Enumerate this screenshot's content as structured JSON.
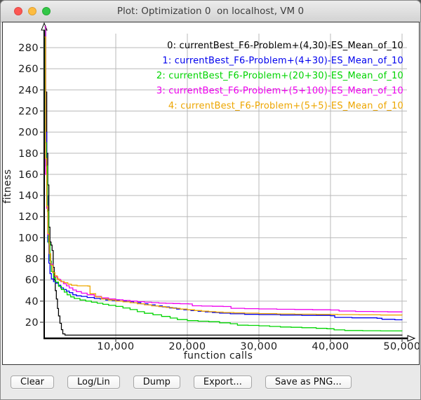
{
  "window": {
    "title": "Plot: Optimization 0  on localhost, VM 0"
  },
  "toolbar": {
    "buttons": [
      "Clear",
      "Log/Lin",
      "Dump",
      "Export...",
      "Save as PNG..."
    ]
  },
  "chart_data": {
    "type": "line",
    "title": "",
    "xlabel": "function calls",
    "ylabel": "fitness",
    "xlim": [
      0,
      50000
    ],
    "ylim": [
      4,
      306
    ],
    "grid": true,
    "legend_position": "top-right",
    "x_ticks": [
      10000,
      20000,
      30000,
      40000,
      50000
    ],
    "x_tick_labels": [
      "10,000",
      "20,000",
      "30,000",
      "40,000",
      "50,000"
    ],
    "y_ticks": [
      20,
      40,
      60,
      80,
      100,
      120,
      140,
      160,
      180,
      200,
      220,
      240,
      260,
      280
    ],
    "colors": {
      "grid": "#b9b9b9",
      "axis": "#000000",
      "tick": "#444444",
      "label": "#1c1c1c"
    },
    "series": [
      {
        "label": "0: currentBest_F6-Problem+(4,30)-ES_Mean_of_10",
        "color": "#000000",
        "points": [
          [
            60,
            300
          ],
          [
            200,
            238
          ],
          [
            350,
            180
          ],
          [
            500,
            150
          ],
          [
            650,
            110
          ],
          [
            800,
            96
          ],
          [
            950,
            93
          ],
          [
            1100,
            88
          ],
          [
            1250,
            72
          ],
          [
            1400,
            60
          ],
          [
            1550,
            50
          ],
          [
            1700,
            42
          ],
          [
            1850,
            33
          ],
          [
            2000,
            26
          ],
          [
            2200,
            19
          ],
          [
            2400,
            13
          ],
          [
            2600,
            9
          ],
          [
            2900,
            7.8
          ],
          [
            50000,
            7.5
          ]
        ]
      },
      {
        "label": "1: currentBest_F6-Problem+(4+30)-ES_Mean_of_10",
        "color": "#0000ee",
        "points": [
          [
            60,
            295
          ],
          [
            200,
            200
          ],
          [
            350,
            140
          ],
          [
            500,
            96
          ],
          [
            650,
            76
          ],
          [
            800,
            66
          ],
          [
            1000,
            61
          ],
          [
            1300,
            58.5
          ],
          [
            1600,
            57
          ],
          [
            2000,
            55
          ],
          [
            2300,
            52.5
          ],
          [
            2700,
            51
          ],
          [
            3100,
            49.5
          ],
          [
            3500,
            48
          ],
          [
            4000,
            46
          ],
          [
            4500,
            45
          ],
          [
            5200,
            44.5
          ],
          [
            6000,
            43.5
          ],
          [
            7000,
            42.5
          ],
          [
            7800,
            42
          ],
          [
            8600,
            41
          ],
          [
            9500,
            40.5
          ],
          [
            10500,
            40
          ],
          [
            11500,
            39.5
          ],
          [
            12500,
            38.5
          ],
          [
            13500,
            37.5
          ],
          [
            14500,
            36.5
          ],
          [
            15500,
            35.5
          ],
          [
            16500,
            34.5
          ],
          [
            17500,
            33.5
          ],
          [
            18500,
            32.5
          ],
          [
            19500,
            31.8
          ],
          [
            20500,
            31
          ],
          [
            21500,
            30.4
          ],
          [
            22500,
            29.8
          ],
          [
            23500,
            29.2
          ],
          [
            24500,
            28.6
          ],
          [
            26000,
            28
          ],
          [
            28000,
            27.5
          ],
          [
            30000,
            27.2
          ],
          [
            33000,
            26.8
          ],
          [
            36000,
            26.5
          ],
          [
            40000,
            26.2
          ],
          [
            40600,
            24.6
          ],
          [
            43000,
            24.2
          ],
          [
            46500,
            23.8
          ],
          [
            47200,
            22.8
          ],
          [
            49000,
            22.3
          ],
          [
            50000,
            22.2
          ]
        ]
      },
      {
        "label": "2: currentBest_F6-Problem+(20+30)-ES_Mean_of_10",
        "color": "#00d400",
        "points": [
          [
            60,
            300
          ],
          [
            150,
            190
          ],
          [
            300,
            168
          ],
          [
            450,
            125
          ],
          [
            600,
            95
          ],
          [
            800,
            78
          ],
          [
            1000,
            68
          ],
          [
            1300,
            62
          ],
          [
            1600,
            58
          ],
          [
            2000,
            54
          ],
          [
            2400,
            51
          ],
          [
            2800,
            48.5
          ],
          [
            3200,
            46
          ],
          [
            3700,
            44
          ],
          [
            4200,
            42.5
          ],
          [
            5000,
            41
          ],
          [
            5800,
            40
          ],
          [
            6600,
            39
          ],
          [
            7400,
            38
          ],
          [
            8200,
            37
          ],
          [
            9000,
            36
          ],
          [
            10000,
            35
          ],
          [
            11000,
            33.5
          ],
          [
            12000,
            32
          ],
          [
            13000,
            30
          ],
          [
            14000,
            28.5
          ],
          [
            15200,
            27
          ],
          [
            16400,
            25.5
          ],
          [
            17600,
            24
          ],
          [
            18600,
            22.5
          ],
          [
            20000,
            21.5
          ],
          [
            21500,
            21
          ],
          [
            23000,
            20.5
          ],
          [
            24500,
            19.5
          ],
          [
            26000,
            18.6
          ],
          [
            27000,
            17.2
          ],
          [
            28500,
            17
          ],
          [
            30000,
            16.6
          ],
          [
            31500,
            16
          ],
          [
            33000,
            15.5
          ],
          [
            34500,
            15.2
          ],
          [
            36000,
            14.8
          ],
          [
            38000,
            14.2
          ],
          [
            39500,
            13.8
          ],
          [
            40500,
            12.8
          ],
          [
            42000,
            12.2
          ],
          [
            44500,
            12
          ],
          [
            47000,
            11.8
          ],
          [
            50000,
            11.7
          ]
        ]
      },
      {
        "label": "3: currentBest_F6-Problem+(5+100)-ES_Mean_of_10",
        "color": "#ee00ee",
        "points": [
          [
            60,
            300
          ],
          [
            200,
            160
          ],
          [
            350,
            128
          ],
          [
            500,
            103
          ],
          [
            700,
            85
          ],
          [
            900,
            75
          ],
          [
            1200,
            67
          ],
          [
            1500,
            63
          ],
          [
            1900,
            60.5
          ],
          [
            2300,
            58.5
          ],
          [
            2700,
            56.5
          ],
          [
            3100,
            54.5
          ],
          [
            3500,
            52.5
          ],
          [
            4000,
            50.5
          ],
          [
            4500,
            49
          ],
          [
            5200,
            47.5
          ],
          [
            6000,
            46
          ],
          [
            7000,
            44.5
          ],
          [
            8000,
            43
          ],
          [
            9000,
            42
          ],
          [
            10000,
            41.3
          ],
          [
            11000,
            40.6
          ],
          [
            12000,
            40
          ],
          [
            13000,
            39.5
          ],
          [
            14000,
            39
          ],
          [
            15000,
            38.6
          ],
          [
            16000,
            38.2
          ],
          [
            17000,
            37.9
          ],
          [
            18000,
            37.7
          ],
          [
            19000,
            37.5
          ],
          [
            20200,
            37.3
          ],
          [
            20700,
            35.6
          ],
          [
            22000,
            35.3
          ],
          [
            23500,
            35.1
          ],
          [
            25000,
            34.9
          ],
          [
            26100,
            33.2
          ],
          [
            28000,
            32.9
          ],
          [
            30000,
            32.6
          ],
          [
            32500,
            32.3
          ],
          [
            35000,
            32.1
          ],
          [
            37500,
            31.8
          ],
          [
            40000,
            31.6
          ],
          [
            41200,
            30.6
          ],
          [
            43500,
            30.2
          ],
          [
            46000,
            30
          ],
          [
            48000,
            29.8
          ],
          [
            50000,
            29.7
          ]
        ]
      },
      {
        "label": "4: currentBest_F6-Problem+(5+5)-ES_Mean_of_10",
        "color": "#eda600",
        "points": [
          [
            60,
            290
          ],
          [
            200,
            175
          ],
          [
            350,
            130
          ],
          [
            500,
            104
          ],
          [
            700,
            85
          ],
          [
            900,
            74
          ],
          [
            1200,
            67
          ],
          [
            1500,
            64
          ],
          [
            1800,
            61
          ],
          [
            2100,
            59.5
          ],
          [
            2400,
            58.5
          ],
          [
            2800,
            57.5
          ],
          [
            3300,
            56
          ],
          [
            3800,
            55
          ],
          [
            4600,
            54.5
          ],
          [
            6100,
            54.3
          ],
          [
            6400,
            47
          ],
          [
            7200,
            44
          ],
          [
            8000,
            42
          ],
          [
            9000,
            41
          ],
          [
            10000,
            40
          ],
          [
            11000,
            39.3
          ],
          [
            12000,
            38.5
          ],
          [
            13000,
            37.5
          ],
          [
            14000,
            36.5
          ],
          [
            15000,
            35.5
          ],
          [
            16000,
            34.8
          ],
          [
            17000,
            34
          ],
          [
            18000,
            33.2
          ],
          [
            19000,
            32.5
          ],
          [
            20000,
            31.8
          ],
          [
            21000,
            31.1
          ],
          [
            22000,
            30.5
          ],
          [
            23000,
            30
          ],
          [
            24000,
            29.6
          ],
          [
            25000,
            29.2
          ],
          [
            26500,
            28.9
          ],
          [
            28000,
            28.6
          ],
          [
            30000,
            28.2
          ],
          [
            32500,
            27.9
          ],
          [
            35000,
            27.6
          ],
          [
            38000,
            27.4
          ],
          [
            41000,
            27.2
          ],
          [
            44000,
            27
          ],
          [
            47000,
            26.8
          ],
          [
            50000,
            26.6
          ]
        ]
      }
    ]
  }
}
